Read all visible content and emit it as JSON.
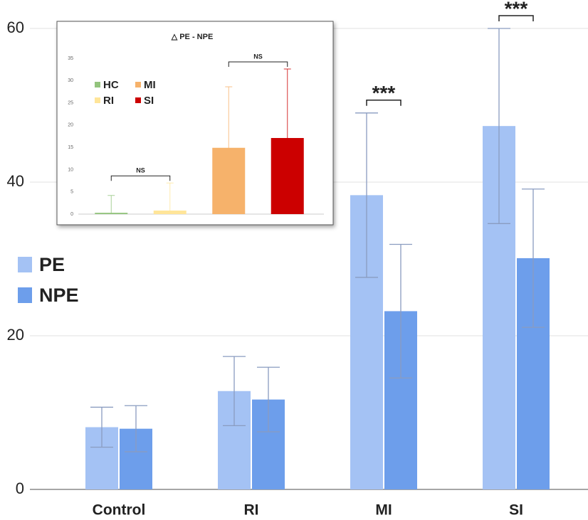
{
  "chart_data": [
    {
      "type": "bar",
      "categories": [
        "Control",
        "RI",
        "MI",
        "SI"
      ],
      "series": [
        {
          "name": "PE",
          "color": "#a4c2f4",
          "values": [
            8.1,
            12.8,
            38.3,
            47.3
          ],
          "errors": [
            2.6,
            4.5,
            10.7,
            12.7
          ]
        },
        {
          "name": "NPE",
          "color": "#6d9eeb",
          "values": [
            7.9,
            11.7,
            23.2,
            30.1
          ],
          "errors": [
            3.0,
            4.2,
            8.7,
            9.0
          ]
        }
      ],
      "ylim": [
        0,
        60
      ],
      "yticks": [
        0,
        20,
        40,
        60
      ],
      "grid": true,
      "annotations": [
        "***",
        "***"
      ]
    },
    {
      "type": "bar",
      "title": "△ PE - NPE",
      "series": [
        {
          "name": "HC",
          "color": "#93c47d",
          "values": [
            0.3
          ],
          "errors": [
            3.9
          ]
        },
        {
          "name": "RI",
          "color": "#ffe599",
          "values": [
            0.8
          ],
          "errors": [
            6.2
          ]
        },
        {
          "name": "MI",
          "color": "#f6b26b",
          "values": [
            14.9
          ],
          "errors": [
            13.7
          ]
        },
        {
          "name": "SI",
          "color": "#cc0000",
          "values": [
            17.1
          ],
          "errors": [
            15.5
          ]
        }
      ],
      "ylim": [
        0,
        35
      ],
      "yticks": [
        0,
        5,
        10,
        15,
        20,
        25,
        30,
        35
      ],
      "grid": false,
      "annotations": [
        "NS",
        "NS"
      ]
    }
  ]
}
